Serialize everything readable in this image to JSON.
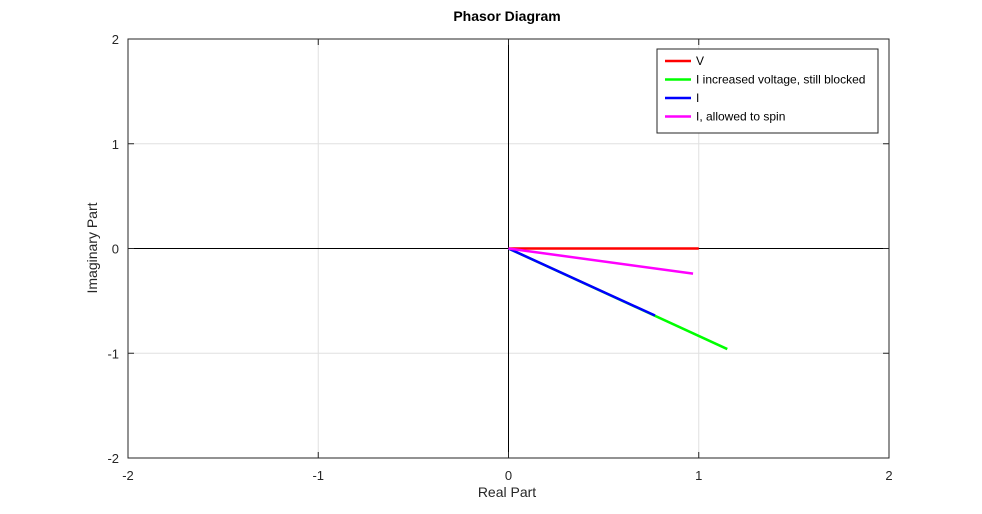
{
  "chart_data": {
    "type": "line",
    "title": "Phasor Diagram",
    "xlabel": "Real Part",
    "ylabel": "Imaginary Part",
    "xlim": [
      -2,
      2
    ],
    "ylim": [
      -2,
      2
    ],
    "xticks": [
      "-2",
      "-1",
      "0",
      "1",
      "2"
    ],
    "yticks": [
      "-2",
      "-1",
      "0",
      "1",
      "2"
    ],
    "grid": true,
    "legend_position": "top-right",
    "series": [
      {
        "name": "V",
        "color": "#ff0000",
        "x": [
          0,
          1.0
        ],
        "y": [
          0,
          0
        ]
      },
      {
        "name": "I increased voltage, still blocked",
        "color": "#00ff00",
        "x": [
          0,
          1.15
        ],
        "y": [
          0,
          -0.96
        ]
      },
      {
        "name": "I",
        "color": "#0000ff",
        "x": [
          0,
          0.77
        ],
        "y": [
          0,
          -0.64
        ]
      },
      {
        "name": "I, allowed to spin",
        "color": "#ff00ff",
        "x": [
          0,
          0.97
        ],
        "y": [
          0,
          -0.24
        ]
      }
    ]
  }
}
